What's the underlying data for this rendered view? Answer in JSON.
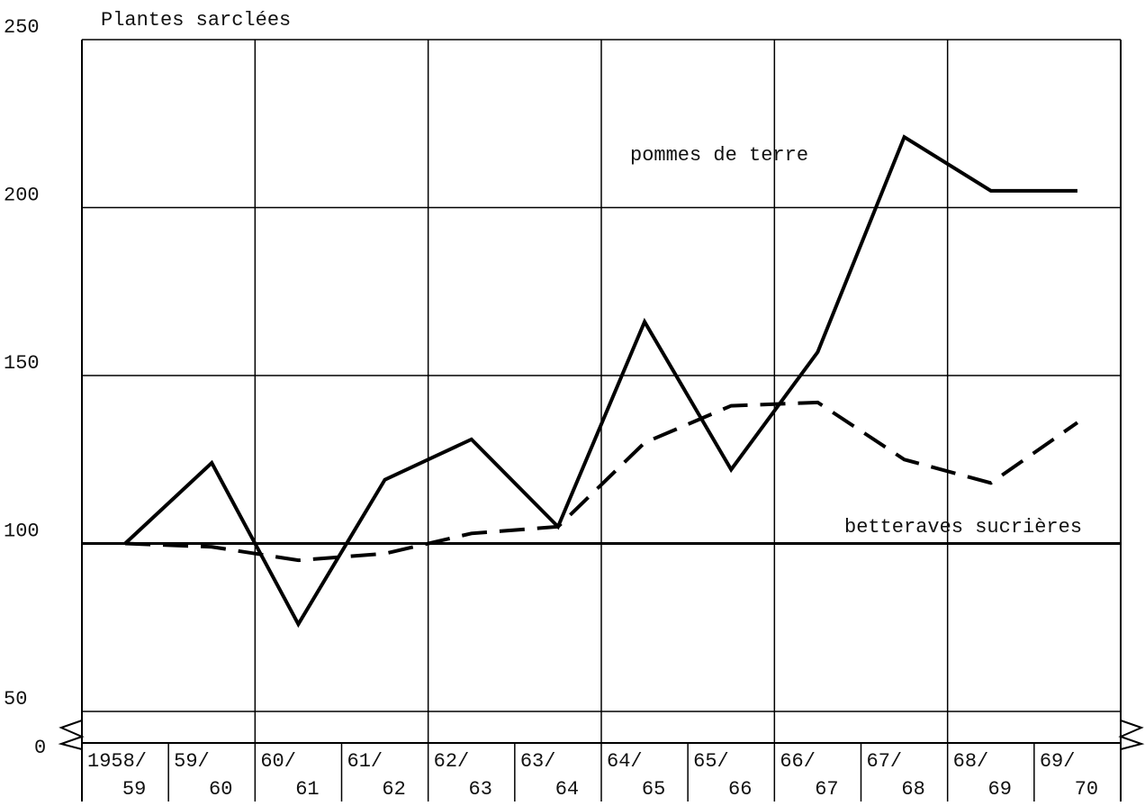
{
  "chart_data": {
    "type": "line",
    "title": "Plantes sarclées",
    "categories": [
      [
        "1958/",
        "59"
      ],
      [
        "59/",
        "60"
      ],
      [
        "60/",
        "61"
      ],
      [
        "61/",
        "62"
      ],
      [
        "62/",
        "63"
      ],
      [
        "63/",
        "64"
      ],
      [
        "64/",
        "65"
      ],
      [
        "65/",
        "66"
      ],
      [
        "66/",
        "67"
      ],
      [
        "67/",
        "68"
      ],
      [
        "68/",
        "69"
      ],
      [
        "69/",
        "70"
      ]
    ],
    "series": [
      {
        "name": "pommes de terre",
        "color": "#000000",
        "dashed": false,
        "values": [
          100,
          124,
          76,
          119,
          131,
          105,
          166,
          122,
          157,
          221,
          205,
          205
        ]
      },
      {
        "name": "betteraves sucrières",
        "color": "#000000",
        "dashed": true,
        "values": [
          100,
          99,
          95,
          97,
          103,
          105,
          130,
          141,
          142,
          125,
          118,
          136
        ]
      }
    ],
    "ylim": [
      50,
      250
    ],
    "yticks": [
      50,
      100,
      150,
      200,
      250
    ],
    "break_tick": 0,
    "grid": true
  }
}
